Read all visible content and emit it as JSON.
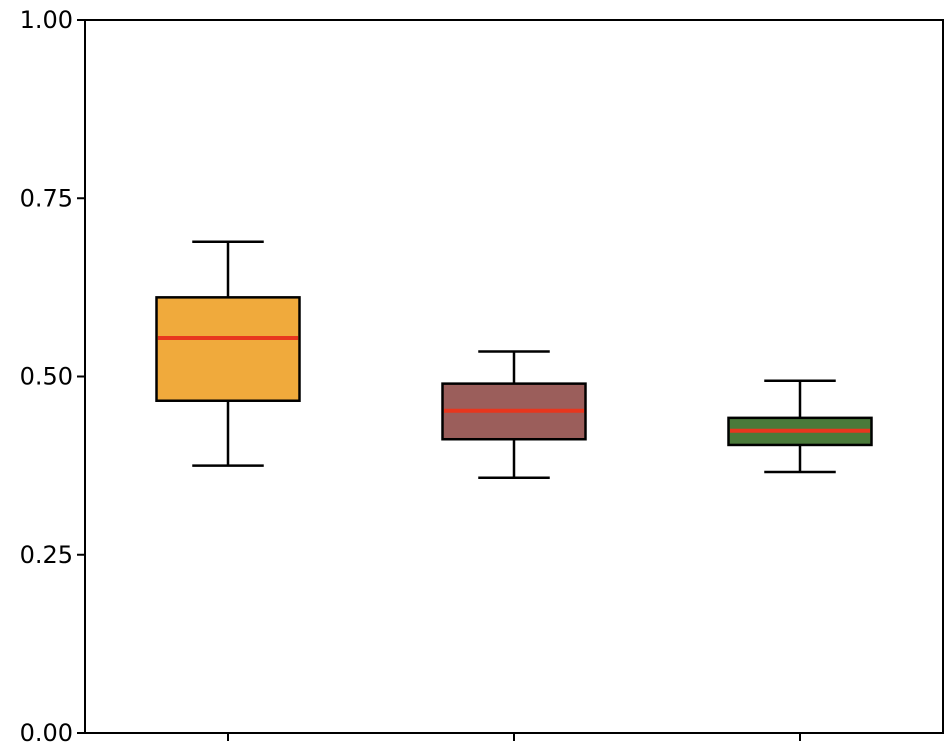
{
  "chart_data": {
    "type": "box",
    "title": "",
    "xlabel": "",
    "ylabel": "",
    "ylim": [
      0,
      1
    ],
    "y_ticks": [
      0.0,
      0.25,
      0.5,
      0.75,
      1.0
    ],
    "y_tick_labels": [
      "0.00",
      "0.25",
      "0.50",
      "0.75",
      "1.00"
    ],
    "grid": false,
    "median_color": "#e8361e",
    "boxes": [
      {
        "whisker_low": 0.375,
        "q1": 0.466,
        "median": 0.554,
        "q3": 0.611,
        "whisker_high": 0.689,
        "color": "#f0aa3c"
      },
      {
        "whisker_low": 0.358,
        "q1": 0.412,
        "median": 0.452,
        "q3": 0.49,
        "whisker_high": 0.535,
        "color": "#9b5e5b"
      },
      {
        "whisker_low": 0.366,
        "q1": 0.404,
        "median": 0.424,
        "q3": 0.442,
        "whisker_high": 0.494,
        "color": "#4a7a3a"
      }
    ]
  }
}
